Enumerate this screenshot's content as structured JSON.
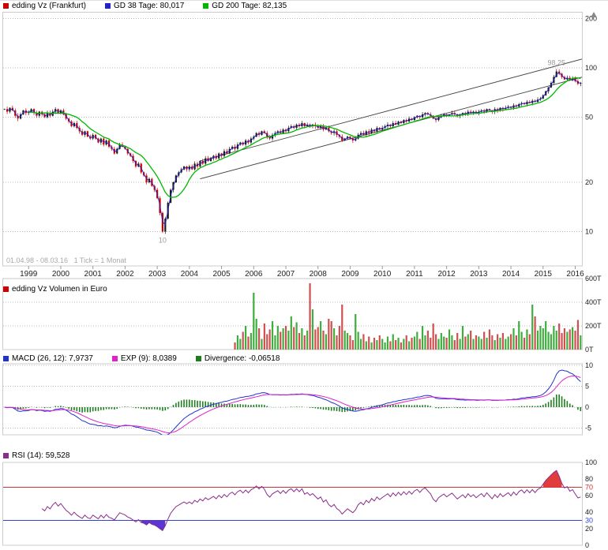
{
  "panels": {
    "price": {
      "legend": [
        {
          "label": "edding Vz (Frankfurt)",
          "color": "#cc0000"
        },
        {
          "label": "GD 38 Tage: 80,017",
          "color": "#2222cc"
        },
        {
          "label": "GD 200 Tage: 82,135",
          "color": "#00b800"
        }
      ],
      "footer": "01.04.98 - 08.03.16   1 Tick = 1 Monat"
    },
    "volume": {
      "legend": [
        {
          "label": "edding Vz Volumen in Euro",
          "color": "#cc0000"
        }
      ]
    },
    "macd": {
      "legend": [
        {
          "label": "MACD (26, 12): 7,9737",
          "color": "#2233cc"
        },
        {
          "label": "EXP (9): 8,0389",
          "color": "#dd22cc"
        },
        {
          "label": "Divergence: -0,06518",
          "color": "#1e7d1e"
        }
      ]
    },
    "rsi": {
      "legend": [
        {
          "label": "RSI (14): 59,528",
          "color": "#8a2d8a"
        }
      ]
    }
  },
  "chart_data": [
    {
      "type": "candlestick",
      "title": "edding Vz (Frankfurt)",
      "timeframe": {
        "start": "1998-04",
        "end": "2016-03",
        "tick": "1 Monat"
      },
      "y_scale": "log",
      "y_ticks": [
        200,
        100,
        50,
        20,
        10
      ],
      "x_year_labels": [
        "1999",
        "2000",
        "2001",
        "2002",
        "2003",
        "2004",
        "2005",
        "2006",
        "2007",
        "2008",
        "2009",
        "2010",
        "2011",
        "2012",
        "2013",
        "2014",
        "2015",
        "2016"
      ],
      "closes": [
        56,
        54,
        57,
        55,
        51,
        49,
        52,
        55,
        53,
        54,
        56,
        53,
        51,
        54,
        52,
        50,
        53,
        51,
        54,
        56,
        53,
        55,
        52,
        49,
        47,
        44,
        46,
        43,
        41,
        39,
        41,
        38,
        37,
        39,
        37,
        35,
        37,
        34,
        36,
        33,
        32,
        30,
        32,
        34,
        33,
        32,
        30,
        29,
        27,
        25,
        26,
        23,
        22,
        20,
        21,
        19,
        18,
        16,
        13,
        10,
        12,
        15,
        18,
        20,
        22,
        23,
        24,
        25,
        24,
        25,
        24,
        26,
        25,
        27,
        26,
        28,
        27,
        28,
        29,
        28,
        30,
        29,
        31,
        30,
        32,
        33,
        32,
        34,
        35,
        34,
        36,
        35,
        37,
        38,
        40,
        39,
        41,
        40,
        38,
        37,
        39,
        40,
        41,
        40,
        42,
        41,
        43,
        44,
        43,
        45,
        44,
        46,
        44,
        45,
        44,
        45,
        44,
        43,
        44,
        42,
        43,
        41,
        40,
        41,
        39,
        38,
        36,
        37,
        38,
        37,
        36,
        37,
        39,
        40,
        39,
        41,
        40,
        42,
        41,
        43,
        42,
        43,
        44,
        45,
        44,
        46,
        45,
        47,
        46,
        48,
        47,
        49,
        48,
        50,
        51,
        50,
        52,
        53,
        52,
        51,
        49,
        48,
        50,
        51,
        52,
        51,
        52,
        53,
        52,
        51,
        52,
        53,
        52,
        54,
        53,
        54,
        53,
        54,
        55,
        54,
        56,
        55,
        54,
        56,
        55,
        57,
        56,
        57,
        58,
        57,
        59,
        58,
        60,
        61,
        60,
        62,
        61,
        63,
        62,
        64,
        65,
        68,
        72,
        76,
        81,
        88,
        95,
        92,
        88,
        85,
        87,
        84,
        86,
        83,
        80,
        81
      ],
      "overrides": {
        "peak": {
          "index": 206,
          "high": 98.25,
          "label": "98,25"
        },
        "trough": {
          "index": 59,
          "low": 9.8,
          "label": "10"
        }
      },
      "ma": [
        {
          "name": "GD 38 Tage",
          "window": 2,
          "color": "#2222cc",
          "current": "80,017"
        },
        {
          "name": "GD 200 Tage",
          "window": 10,
          "color": "#00b800",
          "current": "82,135"
        }
      ],
      "trend_channel": [
        {
          "i1": 73,
          "p1": 21,
          "i2": 218,
          "p2": 90
        },
        {
          "i1": 73,
          "p1": 27,
          "i2": 218,
          "p2": 116
        }
      ],
      "colors": {
        "up": "#1a1a1a",
        "down": "#cc0000"
      }
    },
    {
      "type": "bar",
      "title": "edding Vz Volumen in Euro",
      "unit": "T",
      "y_ticks": [
        600,
        400,
        200,
        0
      ],
      "start_index": 86,
      "values": [
        60,
        120,
        90,
        150,
        200,
        110,
        140,
        480,
        260,
        180,
        90,
        220,
        130,
        170,
        240,
        120,
        200,
        150,
        180,
        200,
        160,
        280,
        190,
        230,
        140,
        180,
        120,
        160,
        560,
        340,
        170,
        190,
        240,
        160,
        130,
        260,
        240,
        180,
        120,
        200,
        380,
        160,
        140,
        120,
        80,
        300,
        150,
        90,
        130,
        70,
        110,
        60,
        100,
        80,
        120,
        90,
        60,
        110,
        70,
        130,
        80,
        100,
        60,
        90,
        120,
        70,
        100,
        110,
        150,
        90,
        200,
        120,
        160,
        100,
        220,
        130,
        90,
        140,
        110,
        100,
        170,
        120,
        80,
        140,
        90,
        200,
        110,
        130,
        160,
        90,
        120,
        110,
        90,
        150,
        100,
        170,
        120,
        80,
        130,
        100,
        140,
        90,
        110,
        130,
        180,
        120,
        240,
        150,
        100,
        170,
        130,
        380,
        280,
        160,
        200,
        180,
        240,
        150,
        130,
        200,
        160,
        220,
        140,
        180,
        150,
        170,
        190,
        160,
        250,
        120
      ],
      "colors": {
        "up": "#3fae3f",
        "down": "#d04f4f"
      }
    },
    {
      "type": "line+bar",
      "title": "MACD",
      "params": {
        "fast": 12,
        "slow": 26,
        "signal": 9
      },
      "current": {
        "macd": "7,9737",
        "signal": "8,0389",
        "divergence": "-0,06518"
      },
      "y_ticks": [
        10,
        5,
        0,
        -5
      ],
      "colors": {
        "macd": "#2233cc",
        "signal": "#dd22cc",
        "divergence": "#1e7d1e"
      }
    },
    {
      "type": "line",
      "title": "RSI",
      "params": {
        "period": 14
      },
      "current": "59,528",
      "y_ticks": [
        100,
        80,
        70,
        60,
        40,
        30,
        20,
        0
      ],
      "thresholds": {
        "upper": 70,
        "lower": 30
      },
      "colors": {
        "line": "#8a2d8a",
        "upper_fill": "#e03c3c",
        "lower_fill": "#5b35d5",
        "upper_line": "#cc3333",
        "lower_line": "#3344cc"
      }
    }
  ]
}
